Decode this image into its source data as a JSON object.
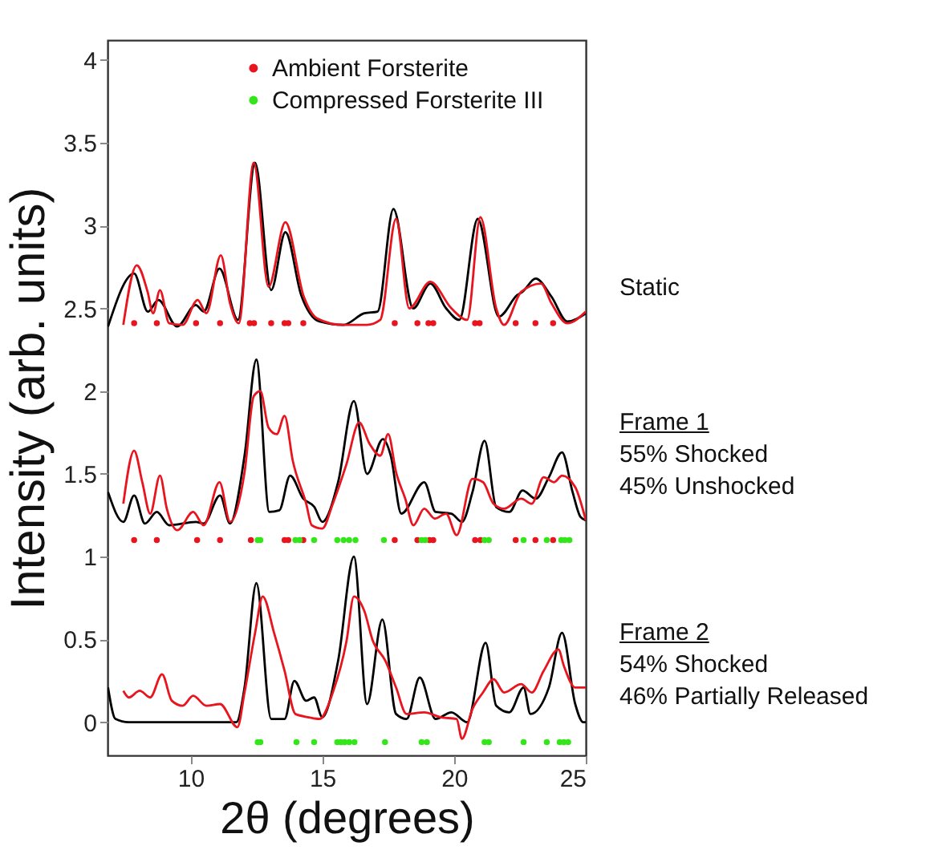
{
  "chart_data": {
    "type": "line",
    "xlabel": "2θ (degrees)",
    "ylabel": "Intensity (arb. units)",
    "xlim": [
      6.85,
      25
    ],
    "ylim": [
      -0.2,
      4.12
    ],
    "xticks": [
      10,
      15,
      20,
      25
    ],
    "yticks": [
      0,
      0.5,
      1,
      1.5,
      2,
      2.5,
      3,
      3.5,
      4
    ],
    "legend": "top",
    "grid": false,
    "line_style": "solid",
    "annotations": [
      "Static",
      "Frame 1\n55% Shocked\n45% Unshocked",
      "Frame 2\n54% Shocked\n46% Partially Released"
    ],
    "series": [
      {
        "color": "#000000",
        "x": [
          6.87,
          7.86,
          8.38,
          8.78,
          9.49,
          10.2,
          10.5,
          11.1,
          11.8,
          12.45,
          13.06,
          13.6,
          14.2,
          14.9,
          15.8,
          16.6,
          17.1,
          17.7,
          18.45,
          19.1,
          19.7,
          20.2,
          20.9,
          21.7,
          22.4,
          22.6,
          23.1,
          23.7,
          24.3,
          25
        ],
        "values": [
          2.39,
          2.71,
          2.48,
          2.55,
          2.39,
          2.52,
          2.48,
          2.74,
          2.43,
          3.38,
          2.61,
          2.96,
          2.58,
          2.42,
          2.4,
          2.47,
          2.48,
          3.1,
          2.5,
          2.65,
          2.5,
          2.43,
          3.04,
          2.45,
          2.58,
          2.6,
          2.68,
          2.57,
          2.42,
          2.47
        ]
      },
      {
        "color": "#e8141e",
        "x": [
          7.45,
          7.96,
          8.37,
          8.58,
          8.84,
          9.19,
          9.7,
          10.27,
          10.6,
          11.15,
          11.5,
          11.83,
          12.4,
          12.96,
          13.6,
          14.3,
          14.8,
          15.8,
          16.7,
          17.2,
          17.8,
          18.3,
          19.1,
          19.9,
          20.5,
          21.0,
          21.6,
          21.9,
          22.55,
          23.3,
          23.7,
          24.3,
          25
        ],
        "values": [
          2.4,
          2.76,
          2.6,
          2.47,
          2.61,
          2.41,
          2.4,
          2.55,
          2.47,
          2.82,
          2.53,
          2.41,
          3.38,
          2.63,
          3.02,
          2.57,
          2.44,
          2.4,
          2.4,
          2.43,
          3.04,
          2.5,
          2.66,
          2.5,
          2.43,
          3.05,
          2.5,
          2.4,
          2.6,
          2.65,
          2.53,
          2.41,
          2.48
        ]
      },
      {
        "color": "#000000",
        "x": [
          6.87,
          7.45,
          7.86,
          8.27,
          8.72,
          9.19,
          10.2,
          10.5,
          11.12,
          11.5,
          12.05,
          12.5,
          12.99,
          13.37,
          13.78,
          14.28,
          14.7,
          15.0,
          15.6,
          16.2,
          16.7,
          17.3,
          17.6,
          18.0,
          18.87,
          19.3,
          19.9,
          20.3,
          20.7,
          21.16,
          21.6,
          22.1,
          22.6,
          23.1,
          23.6,
          24.1,
          24.5,
          24.8,
          25
        ],
        "values": [
          1.39,
          1.21,
          1.37,
          1.2,
          1.27,
          1.19,
          1.21,
          1.2,
          1.37,
          1.2,
          1.61,
          2.19,
          1.27,
          1.28,
          1.49,
          1.35,
          1.3,
          1.21,
          1.45,
          1.94,
          1.5,
          1.71,
          1.61,
          1.26,
          1.45,
          1.27,
          1.26,
          1.21,
          1.39,
          1.7,
          1.3,
          1.27,
          1.4,
          1.35,
          1.48,
          1.63,
          1.39,
          1.24,
          1.22
        ]
      },
      {
        "color": "#e8141e",
        "x": [
          7.45,
          7.86,
          8.17,
          8.47,
          8.84,
          9.1,
          9.5,
          10.1,
          10.5,
          11.1,
          11.5,
          12.05,
          12.4,
          12.65,
          12.96,
          13.27,
          13.57,
          13.88,
          14.39,
          14.6,
          15.0,
          15.4,
          15.92,
          16.4,
          16.8,
          17.2,
          17.5,
          17.8,
          18.15,
          18.46,
          18.87,
          19.27,
          19.7,
          20.1,
          20.7,
          21.1,
          21.5,
          21.9,
          22.55,
          22.95,
          23.4,
          23.8,
          24.1,
          24.6,
          25
        ],
        "values": [
          1.32,
          1.64,
          1.45,
          1.26,
          1.49,
          1.29,
          1.16,
          1.27,
          1.19,
          1.45,
          1.21,
          1.51,
          1.97,
          2.0,
          1.78,
          1.74,
          1.85,
          1.58,
          1.32,
          1.19,
          1.17,
          1.32,
          1.56,
          1.81,
          1.68,
          1.61,
          1.74,
          1.51,
          1.35,
          1.19,
          1.29,
          1.23,
          1.26,
          1.13,
          1.47,
          1.45,
          1.32,
          1.29,
          1.35,
          1.32,
          1.48,
          1.45,
          1.49,
          1.42,
          1.22
        ]
      },
      {
        "color": "#000000",
        "x": [
          6.87,
          7.15,
          7.66,
          11.74,
          12.05,
          12.5,
          13.06,
          13.57,
          13.94,
          14.39,
          14.69,
          15.0,
          15.6,
          16.2,
          16.7,
          17.28,
          17.8,
          18.2,
          18.7,
          19.3,
          19.9,
          20.5,
          21.2,
          21.6,
          22.1,
          22.64,
          22.9,
          23.6,
          24.1,
          24.6,
          24.9,
          25
        ],
        "values": [
          0.21,
          0.02,
          0.0,
          0.0,
          0.21,
          0.84,
          0.02,
          0.02,
          0.25,
          0.13,
          0.15,
          0.03,
          0.37,
          1.0,
          0.11,
          0.62,
          0.05,
          0.02,
          0.27,
          0.02,
          0.06,
          0.0,
          0.48,
          0.1,
          0.06,
          0.21,
          0.05,
          0.21,
          0.54,
          0.11,
          0.0,
          0.0
        ]
      },
      {
        "color": "#e8141e",
        "x": [
          7.45,
          7.66,
          8.07,
          8.47,
          8.92,
          9.29,
          9.7,
          10.1,
          10.6,
          11.12,
          11.78,
          12.05,
          12.45,
          12.74,
          13.17,
          13.57,
          13.98,
          14.49,
          14.9,
          15.4,
          15.92,
          16.2,
          16.6,
          16.9,
          17.4,
          17.8,
          18.2,
          18.87,
          19.5,
          20.1,
          20.3,
          20.7,
          21.1,
          21.5,
          21.9,
          22.55,
          22.95,
          23.4,
          23.96,
          24.17,
          24.6,
          25
        ],
        "values": [
          0.19,
          0.15,
          0.19,
          0.15,
          0.29,
          0.13,
          0.1,
          0.16,
          0.1,
          0.11,
          -0.03,
          0.18,
          0.54,
          0.76,
          0.54,
          0.31,
          0.05,
          0.03,
          0.02,
          0.18,
          0.49,
          0.76,
          0.67,
          0.5,
          0.37,
          0.21,
          0.05,
          0.06,
          0.03,
          0.02,
          -0.1,
          0.08,
          0.18,
          0.26,
          0.18,
          0.23,
          0.18,
          0.31,
          0.44,
          0.34,
          0.21,
          0.21
        ]
      },
      {
        "type": "scatter",
        "marker": "circle",
        "name": "Ambient Forsterite",
        "color": "#e8141e",
        "x": [
          7.86,
          8.72,
          10.21,
          11.12,
          12.25,
          12.41,
          13.06,
          13.57,
          13.71,
          14.28,
          17.75,
          18.61,
          19.03,
          19.21,
          20.8,
          20.97,
          22.34,
          23.09,
          23.76,
          7.86,
          8.72,
          10.25,
          11.12,
          12.29,
          13.57,
          13.71,
          14.28,
          17.75,
          18.61,
          19.07,
          19.21,
          20.8,
          21.0,
          22.34,
          23.09,
          23.76
        ],
        "values": [
          2.41,
          2.41,
          2.41,
          2.41,
          2.41,
          2.41,
          2.41,
          2.41,
          2.41,
          2.41,
          2.41,
          2.41,
          2.41,
          2.41,
          2.41,
          2.41,
          2.41,
          2.41,
          2.41,
          1.1,
          1.1,
          1.1,
          1.1,
          1.1,
          1.1,
          1.1,
          1.1,
          1.1,
          1.1,
          1.1,
          1.1,
          1.1,
          1.1,
          1.1,
          1.1,
          1.1
        ]
      },
      {
        "type": "scatter",
        "marker": "circle",
        "name": "Compressed Forsterite III",
        "color": "#33e61a",
        "x": [
          12.55,
          12.65,
          13.98,
          14.14,
          14.69,
          15.57,
          15.81,
          16.02,
          16.26,
          17.34,
          18.77,
          18.91,
          21.16,
          21.32,
          22.64,
          23.52,
          24.07,
          24.21,
          24.38,
          12.55,
          12.65,
          14.02,
          14.69,
          15.57,
          15.71,
          15.85,
          16.02,
          16.22,
          17.38,
          18.77,
          18.97,
          21.16,
          21.32,
          22.64,
          23.52,
          24.01,
          24.17,
          24.33
        ],
        "values": [
          1.1,
          1.1,
          1.1,
          1.1,
          1.1,
          1.1,
          1.1,
          1.1,
          1.1,
          1.1,
          1.1,
          1.1,
          1.1,
          1.1,
          1.1,
          1.1,
          1.1,
          1.1,
          1.1,
          -0.12,
          -0.12,
          -0.12,
          -0.12,
          -0.12,
          -0.12,
          -0.12,
          -0.12,
          -0.12,
          -0.12,
          -0.12,
          -0.12,
          -0.12,
          -0.12,
          -0.12,
          -0.12,
          -0.12,
          -0.12,
          -0.12
        ]
      }
    ]
  }
}
